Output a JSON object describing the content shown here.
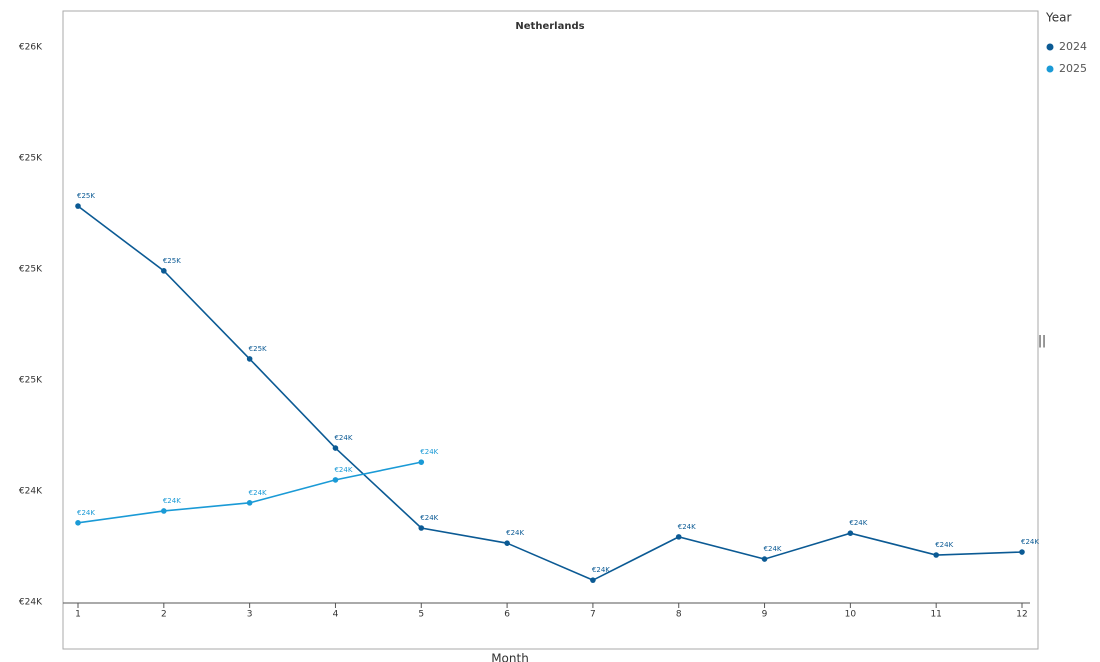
{
  "chart_data": {
    "type": "line",
    "title": "Netherlands",
    "x_label": "Month",
    "legend_title": "Year",
    "x": [
      1,
      2,
      3,
      4,
      5,
      6,
      7,
      8,
      9,
      10,
      11,
      12
    ],
    "xlim": [
      1,
      12
    ],
    "xticks": [
      1,
      2,
      3,
      4,
      5,
      6,
      7,
      8,
      9,
      10,
      11,
      12
    ],
    "ylim": [
      24000,
      25600
    ],
    "yticks": [
      {
        "value": 24000,
        "label": "€24K"
      },
      {
        "value": 24300,
        "label": "€24K"
      },
      {
        "value": 24600,
        "label": "€25K"
      },
      {
        "value": 24900,
        "label": "€25K"
      },
      {
        "value": 25200,
        "label": "€25K"
      },
      {
        "value": 25500,
        "label": "€26K"
      }
    ],
    "grid": false,
    "legend": "right",
    "series": [
      {
        "name": "2024",
        "color": "#0b5a94",
        "values": [
          25070,
          24895,
          24657,
          24416,
          24200,
          24159,
          24059,
          24176,
          24116,
          24186,
          24127,
          24135
        ],
        "value_labels": [
          "€25K",
          "€25K",
          "€25K",
          "€24K",
          "€24K",
          "€24K",
          "€24K",
          "€24K",
          "€24K",
          "€24K",
          "€24K",
          "€24K"
        ]
      },
      {
        "name": "2025",
        "color": "#1a9ad6",
        "values": [
          24214,
          24246,
          24268,
          24330,
          24378,
          null,
          null,
          null,
          null,
          null,
          null,
          null
        ],
        "value_labels": [
          "€24K",
          "€24K",
          "€24K",
          "€24K",
          "€24K",
          null,
          null,
          null,
          null,
          null,
          null,
          null
        ]
      }
    ]
  }
}
